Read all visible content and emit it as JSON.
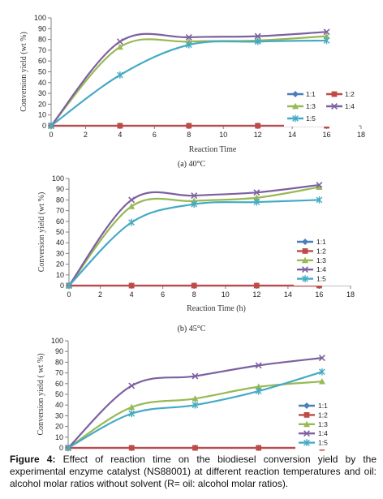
{
  "chart_data": [
    {
      "type": "line",
      "subcaption": "(a) 40°C",
      "xlabel": "Reaction Time",
      "ylabel": "Conversion yield (wt %)",
      "xlim": [
        0,
        18
      ],
      "ylim": [
        0,
        100
      ],
      "xticks": [
        "0",
        "2",
        "4",
        "6",
        "8",
        "10",
        "12",
        "14",
        "16",
        "18"
      ],
      "yticks": [
        "0",
        "10",
        "20",
        "30",
        "40",
        "50",
        "60",
        "70",
        "80",
        "90",
        "100"
      ],
      "legend_position": "right-middle",
      "x": [
        0,
        4,
        8,
        12,
        16
      ],
      "series": [
        {
          "name": "1:1",
          "values": [
            0,
            0,
            0,
            0,
            0
          ],
          "color": "#4a7ebb",
          "marker": "diamond"
        },
        {
          "name": "1:2",
          "values": [
            0,
            0,
            0,
            0,
            0
          ],
          "color": "#be4b48",
          "marker": "square"
        },
        {
          "name": "1:3",
          "values": [
            0,
            73,
            78,
            79,
            83
          ],
          "color": "#98b954",
          "marker": "triangle"
        },
        {
          "name": "1:4",
          "values": [
            0,
            78,
            82,
            83,
            87
          ],
          "color": "#7d60a0",
          "marker": "x"
        },
        {
          "name": "1:5",
          "values": [
            0,
            47,
            75,
            78,
            79
          ],
          "color": "#46aac5",
          "marker": "star"
        }
      ]
    },
    {
      "type": "line",
      "subcaption": "(b) 45°C",
      "xlabel": "Reaction Time (h)",
      "ylabel": "Conversion yield (wt %)",
      "xlim": [
        0,
        18
      ],
      "ylim": [
        0,
        100
      ],
      "xticks": [
        "0",
        "2",
        "4",
        "6",
        "8",
        "10",
        "12",
        "14",
        "16",
        "18"
      ],
      "yticks": [
        "0",
        "10",
        "20",
        "30",
        "40",
        "50",
        "60",
        "70",
        "80",
        "90",
        "100"
      ],
      "legend_position": "right-bottom",
      "x": [
        0,
        4,
        8,
        12,
        16
      ],
      "series": [
        {
          "name": "1:1",
          "values": [
            0,
            0,
            0,
            0,
            0
          ],
          "color": "#4a7ebb",
          "marker": "diamond"
        },
        {
          "name": "1:2",
          "values": [
            0,
            0,
            0,
            0,
            0
          ],
          "color": "#be4b48",
          "marker": "square"
        },
        {
          "name": "1:3",
          "values": [
            0,
            74,
            79,
            82,
            92
          ],
          "color": "#98b954",
          "marker": "triangle"
        },
        {
          "name": "1:4",
          "values": [
            0,
            80,
            84,
            87,
            94
          ],
          "color": "#7d60a0",
          "marker": "x"
        },
        {
          "name": "1:5",
          "values": [
            0,
            59,
            76,
            78,
            80
          ],
          "color": "#46aac5",
          "marker": "star"
        }
      ]
    },
    {
      "type": "line",
      "subcaption": "",
      "xlabel": "",
      "ylabel": "Conversion yield ( wt %)",
      "xlim": [
        0,
        18
      ],
      "ylim": [
        0,
        100
      ],
      "xticks": [],
      "yticks": [
        "0",
        "10",
        "20",
        "30",
        "40",
        "50",
        "60",
        "70",
        "80",
        "90",
        "100"
      ],
      "legend_position": "right-bottom",
      "x": [
        0,
        4,
        8,
        12,
        16
      ],
      "series": [
        {
          "name": "1:1",
          "values": [
            0,
            0,
            0,
            0,
            0
          ],
          "color": "#4a7ebb",
          "marker": "diamond"
        },
        {
          "name": "1:2",
          "values": [
            0,
            0,
            0,
            0,
            0
          ],
          "color": "#be4b48",
          "marker": "square"
        },
        {
          "name": "1:3",
          "values": [
            0,
            38,
            46,
            57,
            62
          ],
          "color": "#98b954",
          "marker": "triangle"
        },
        {
          "name": "1:4",
          "values": [
            0,
            58,
            67,
            77,
            84
          ],
          "color": "#7d60a0",
          "marker": "x"
        },
        {
          "name": "1:5",
          "values": [
            0,
            32,
            40,
            53,
            71
          ],
          "color": "#46aac5",
          "marker": "star"
        }
      ]
    }
  ],
  "caption": {
    "label": "Figure 4:",
    "text": " Effect of reaction time on the biodiesel conversion yield by the experimental enzyme catalyst (NS88001) at different reaction temperatures and oil: alcohol molar ratios without solvent (R= oil: alcohol molar ratios)."
  }
}
